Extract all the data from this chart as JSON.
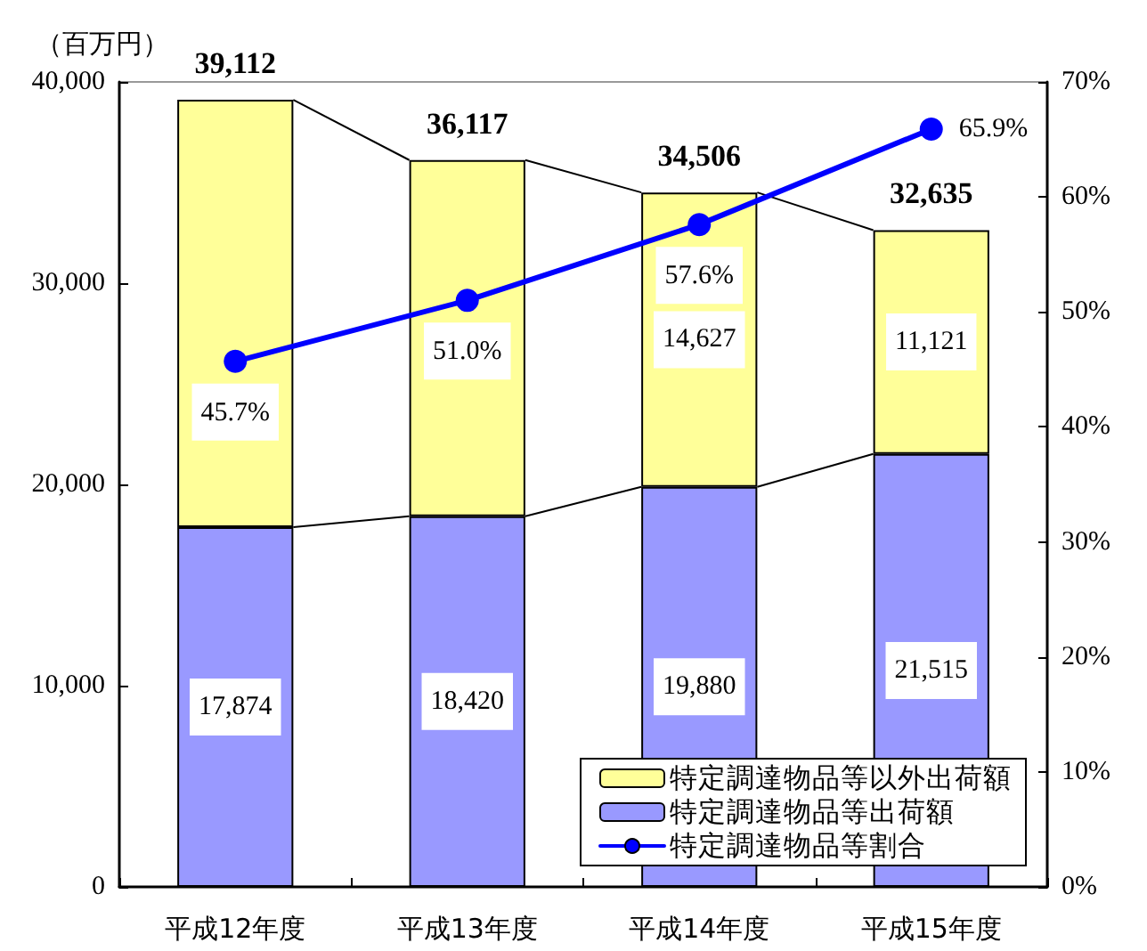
{
  "chart_data": {
    "type": "bar",
    "stacked": true,
    "ylabel": "（百万円）",
    "categories": [
      "平成12年度",
      "平成13年度",
      "平成14年度",
      "平成15年度"
    ],
    "series": [
      {
        "name": "特定調達物品等出荷額",
        "color": "#9999ff",
        "values": [
          17874,
          18420,
          19880,
          21515
        ],
        "value_labels": [
          "17,874",
          "18,420",
          "19,880",
          "21,515"
        ]
      },
      {
        "name": "特定調達物品等以外出荷額",
        "color": "#ffff99",
        "values": [
          21238,
          17697,
          14627,
          11121
        ],
        "value_labels": [
          null,
          null,
          "14,627",
          "11,121"
        ]
      },
      {
        "name": "特定調達物品等割合",
        "type": "line",
        "axis": "y2",
        "color": "#0000ff",
        "values": [
          45.7,
          51.0,
          57.6,
          65.9
        ],
        "value_labels": [
          "45.7%",
          "51.0%",
          "57.6%",
          "65.9%"
        ]
      }
    ],
    "totals": [
      "39,112",
      "36,117",
      "34,506",
      "32,635"
    ],
    "marker": "circle",
    "ylim": [
      0,
      40000
    ],
    "yticks": [
      0,
      {
        "value": 10000,
        "label": "10,000"
      },
      {
        "value": 20000,
        "label": "20,000"
      },
      {
        "value": 30000,
        "label": "30,000"
      },
      {
        "value": 40000,
        "label": "40,000"
      }
    ],
    "y2lim": [
      0,
      70
    ],
    "y2ticks": [
      {
        "value": 0,
        "label": "0%"
      },
      {
        "value": 10,
        "label": "10%"
      },
      {
        "value": 20,
        "label": "20%"
      },
      {
        "value": 30,
        "label": "30%"
      },
      {
        "value": 40,
        "label": "40%"
      },
      {
        "value": 50,
        "label": "50%"
      },
      {
        "value": 60,
        "label": "60%"
      },
      {
        "value": 70,
        "label": "70%"
      }
    ],
    "grid": false,
    "legend": "bottom right"
  }
}
